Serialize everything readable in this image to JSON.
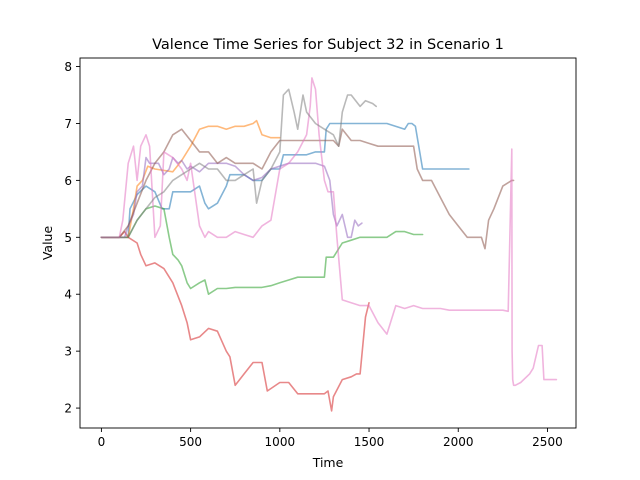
{
  "chart_data": {
    "type": "line",
    "title": "Valence Time Series for Subject 32 in Scenario 1",
    "xlabel": "Time",
    "ylabel": "Value",
    "xlim": [
      -120,
      2660
    ],
    "ylim": [
      1.65,
      8.15
    ],
    "xticks": [
      0,
      500,
      1000,
      1500,
      2000,
      2500
    ],
    "yticks": [
      2,
      3,
      4,
      5,
      6,
      7,
      8
    ],
    "grid": false,
    "legend": "none",
    "series": [
      {
        "color": "#1f77b4",
        "x": [
          0,
          150,
          160,
          200,
          250,
          300,
          340,
          380,
          400,
          500,
          550,
          580,
          600,
          650,
          700,
          720,
          800,
          850,
          900,
          950,
          1000,
          1020,
          1050,
          1100,
          1150,
          1200,
          1250,
          1260,
          1280,
          1300,
          1400,
          1500,
          1600,
          1700,
          1720,
          1740,
          1760,
          1800,
          1900,
          2000,
          2060
        ],
        "y": [
          5.0,
          5.0,
          5.5,
          5.75,
          5.9,
          5.8,
          5.5,
          5.5,
          5.8,
          5.8,
          5.9,
          5.6,
          5.5,
          5.6,
          5.9,
          6.1,
          6.1,
          6.0,
          6.0,
          6.2,
          6.2,
          6.45,
          6.45,
          6.45,
          6.45,
          6.5,
          6.5,
          6.9,
          7.0,
          7.0,
          7.0,
          7.0,
          7.0,
          6.9,
          7.0,
          7.0,
          6.95,
          6.2,
          6.2,
          6.2,
          6.2
        ]
      },
      {
        "color": "#ff7f0e",
        "x": [
          0,
          150,
          180,
          200,
          230,
          260,
          300,
          400,
          450,
          500,
          550,
          600,
          650,
          700,
          750,
          800,
          850,
          870,
          900,
          950,
          1000
        ],
        "y": [
          5.0,
          5.0,
          5.5,
          5.9,
          6.0,
          6.25,
          6.2,
          6.15,
          6.35,
          6.6,
          6.9,
          6.95,
          6.95,
          6.9,
          6.95,
          6.95,
          7.0,
          7.05,
          6.8,
          6.75,
          6.75
        ]
      },
      {
        "color": "#2ca02c",
        "x": [
          0,
          150,
          200,
          250,
          300,
          350,
          380,
          400,
          430,
          450,
          480,
          500,
          550,
          580,
          600,
          650,
          700,
          750,
          800,
          850,
          900,
          950,
          1000,
          1050,
          1100,
          1150,
          1200,
          1250,
          1260,
          1300,
          1350,
          1400,
          1450,
          1500,
          1550,
          1600,
          1650,
          1700,
          1750,
          1800
        ],
        "y": [
          5.0,
          5.0,
          5.3,
          5.5,
          5.55,
          5.5,
          5.0,
          4.7,
          4.6,
          4.5,
          4.2,
          4.1,
          4.2,
          4.25,
          4.0,
          4.1,
          4.1,
          4.12,
          4.12,
          4.12,
          4.12,
          4.15,
          4.2,
          4.25,
          4.3,
          4.3,
          4.3,
          4.3,
          4.65,
          4.65,
          4.9,
          4.95,
          5.0,
          5.0,
          5.0,
          5.0,
          5.1,
          5.1,
          5.05,
          5.05
        ]
      },
      {
        "color": "#d62728",
        "x": [
          0,
          100,
          130,
          150,
          200,
          220,
          250,
          300,
          350,
          400,
          450,
          480,
          500,
          550,
          600,
          650,
          700,
          720,
          750,
          800,
          850,
          900,
          930,
          1000,
          1050,
          1100,
          1150,
          1200,
          1250,
          1270,
          1290,
          1300,
          1350,
          1400,
          1430,
          1450,
          1480,
          1500
        ],
        "y": [
          5.0,
          5.0,
          5.1,
          5.0,
          4.9,
          4.7,
          4.5,
          4.55,
          4.45,
          4.2,
          3.8,
          3.5,
          3.2,
          3.25,
          3.4,
          3.35,
          3.0,
          2.9,
          2.4,
          2.6,
          2.8,
          2.8,
          2.3,
          2.45,
          2.45,
          2.25,
          2.25,
          2.25,
          2.25,
          2.3,
          1.95,
          2.2,
          2.5,
          2.55,
          2.6,
          2.6,
          3.6,
          3.85
        ]
      },
      {
        "color": "#9467bd",
        "x": [
          0,
          130,
          150,
          180,
          200,
          230,
          250,
          270,
          300,
          320,
          350,
          380,
          400,
          430,
          450,
          480,
          500,
          550,
          600,
          650,
          700,
          750,
          800,
          850,
          900,
          950,
          1000,
          1050,
          1100,
          1150,
          1200,
          1250,
          1280,
          1300,
          1320,
          1350,
          1380,
          1400,
          1420,
          1440,
          1460
        ],
        "y": [
          5.0,
          5.0,
          5.2,
          5.4,
          5.8,
          5.9,
          6.4,
          6.3,
          6.3,
          6.3,
          6.1,
          6.2,
          6.4,
          6.3,
          6.35,
          6.2,
          6.25,
          6.15,
          6.3,
          6.3,
          6.3,
          6.25,
          6.1,
          6.0,
          6.05,
          6.2,
          6.25,
          6.3,
          6.3,
          6.3,
          6.3,
          6.25,
          6.0,
          5.4,
          5.2,
          5.4,
          5.0,
          5.0,
          5.3,
          5.2,
          5.25
        ]
      },
      {
        "color": "#8c564b",
        "x": [
          0,
          100,
          150,
          200,
          250,
          300,
          350,
          400,
          450,
          500,
          550,
          600,
          650,
          700,
          750,
          800,
          850,
          900,
          950,
          1000,
          1050,
          1100,
          1150,
          1200,
          1250,
          1300,
          1330,
          1350,
          1400,
          1450,
          1500,
          1550,
          1600,
          1650,
          1700,
          1750,
          1770,
          1800,
          1850,
          1900,
          1950,
          2000,
          2050,
          2100,
          2130,
          2150,
          2170,
          2200,
          2250,
          2300,
          2310
        ],
        "y": [
          5.0,
          5.0,
          5.2,
          5.6,
          6.0,
          6.3,
          6.5,
          6.8,
          6.9,
          6.7,
          6.5,
          6.5,
          6.3,
          6.4,
          6.3,
          6.3,
          6.3,
          6.2,
          6.5,
          6.7,
          6.7,
          6.7,
          6.7,
          6.7,
          6.7,
          6.7,
          6.6,
          6.9,
          6.7,
          6.7,
          6.65,
          6.6,
          6.6,
          6.6,
          6.6,
          6.6,
          6.2,
          6.0,
          6.0,
          5.7,
          5.4,
          5.2,
          5.0,
          5.0,
          5.0,
          4.8,
          5.3,
          5.5,
          5.9,
          6.0,
          6.0
        ]
      },
      {
        "color": "#e377c2",
        "x": [
          0,
          100,
          120,
          150,
          180,
          200,
          220,
          250,
          270,
          300,
          330,
          350,
          400,
          450,
          480,
          500,
          550,
          580,
          600,
          650,
          700,
          750,
          800,
          850,
          900,
          950,
          1000,
          1050,
          1100,
          1150,
          1170,
          1180,
          1190,
          1200,
          1220,
          1250,
          1270,
          1300,
          1320,
          1350,
          1400,
          1450,
          1500,
          1550,
          1600,
          1650,
          1700,
          1750,
          1800,
          1850,
          1900,
          1950,
          2000,
          2050,
          2100,
          2150,
          2200,
          2250,
          2280,
          2300,
          2302,
          2305,
          2310,
          2320,
          2350,
          2400,
          2420,
          2450,
          2470,
          2480,
          2500,
          2550
        ],
        "y": [
          5.0,
          5.0,
          5.3,
          6.3,
          6.6,
          6.0,
          6.6,
          6.8,
          6.6,
          5.0,
          5.2,
          6.5,
          6.4,
          6.2,
          6.0,
          6.3,
          5.2,
          5.0,
          5.1,
          5.0,
          5.0,
          5.1,
          5.05,
          5.0,
          5.2,
          5.3,
          6.2,
          6.3,
          6.5,
          6.8,
          7.3,
          7.8,
          7.7,
          7.6,
          6.8,
          6.0,
          5.8,
          5.8,
          5.0,
          3.9,
          3.85,
          3.8,
          3.8,
          3.5,
          3.3,
          3.8,
          3.75,
          3.8,
          3.75,
          3.75,
          3.75,
          3.72,
          3.72,
          3.72,
          3.72,
          3.72,
          3.72,
          3.72,
          3.7,
          6.55,
          3.0,
          2.5,
          2.4,
          2.4,
          2.45,
          2.6,
          2.7,
          3.1,
          3.1,
          2.5,
          2.5,
          2.5
        ]
      },
      {
        "color": "#7f7f7f",
        "x": [
          0,
          150,
          200,
          250,
          300,
          350,
          400,
          450,
          500,
          550,
          600,
          650,
          700,
          750,
          800,
          850,
          870,
          900,
          950,
          1000,
          1020,
          1050,
          1080,
          1100,
          1130,
          1150,
          1200,
          1250,
          1300,
          1330,
          1350,
          1370,
          1380,
          1400,
          1450,
          1480,
          1520,
          1540
        ],
        "y": [
          5.0,
          5.0,
          5.3,
          5.5,
          5.7,
          5.8,
          6.0,
          6.1,
          6.2,
          6.3,
          6.2,
          6.2,
          6.0,
          6.0,
          6.1,
          6.2,
          5.6,
          6.0,
          6.2,
          6.5,
          7.5,
          7.6,
          7.2,
          6.9,
          7.5,
          7.2,
          7.0,
          6.9,
          6.8,
          6.6,
          7.2,
          7.4,
          7.5,
          7.5,
          7.3,
          7.4,
          7.35,
          7.3
        ]
      }
    ]
  }
}
